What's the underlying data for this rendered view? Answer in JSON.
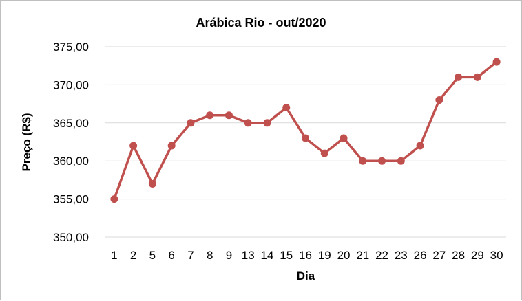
{
  "chart_data": {
    "type": "line",
    "title": "Arábica Rio - out/2020",
    "xlabel": "Dia",
    "ylabel": "Preço (R$)",
    "categories": [
      "1",
      "2",
      "5",
      "6",
      "7",
      "8",
      "9",
      "13",
      "14",
      "15",
      "16",
      "19",
      "20",
      "21",
      "22",
      "23",
      "26",
      "27",
      "28",
      "29",
      "30"
    ],
    "series": [
      {
        "values": [
          355,
          362,
          357,
          362,
          365,
          366,
          366,
          365,
          365,
          367,
          363,
          361,
          363,
          360,
          360,
          360,
          362,
          368,
          371,
          371,
          373
        ],
        "color": "#c0504d"
      }
    ],
    "ylim": [
      350,
      375
    ],
    "yticks": [
      350,
      355,
      360,
      365,
      370,
      375
    ],
    "ytick_labels": [
      "350,00",
      "355,00",
      "360,00",
      "365,00",
      "370,00",
      "375,00"
    ],
    "grid": true,
    "legend": "none"
  }
}
